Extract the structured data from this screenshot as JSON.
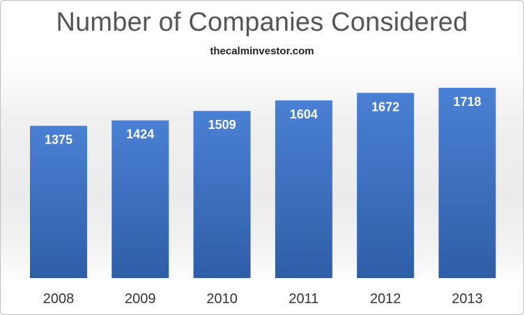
{
  "chart_data": {
    "type": "bar",
    "title": "Number of Companies Considered",
    "subtitle": "thecalminvestor.com",
    "categories": [
      "2008",
      "2009",
      "2010",
      "2011",
      "2012",
      "2013"
    ],
    "values": [
      1375,
      1424,
      1509,
      1604,
      1672,
      1718
    ],
    "data_labels": true,
    "xlabel": "",
    "ylabel": "",
    "ylim": [
      0,
      1900
    ],
    "grid": false,
    "legend": "none",
    "colors": {
      "bar_top": "#4a80d3",
      "bar_bottom": "#2f5ea8",
      "label": "#ffffff",
      "tick": "#333333"
    }
  }
}
